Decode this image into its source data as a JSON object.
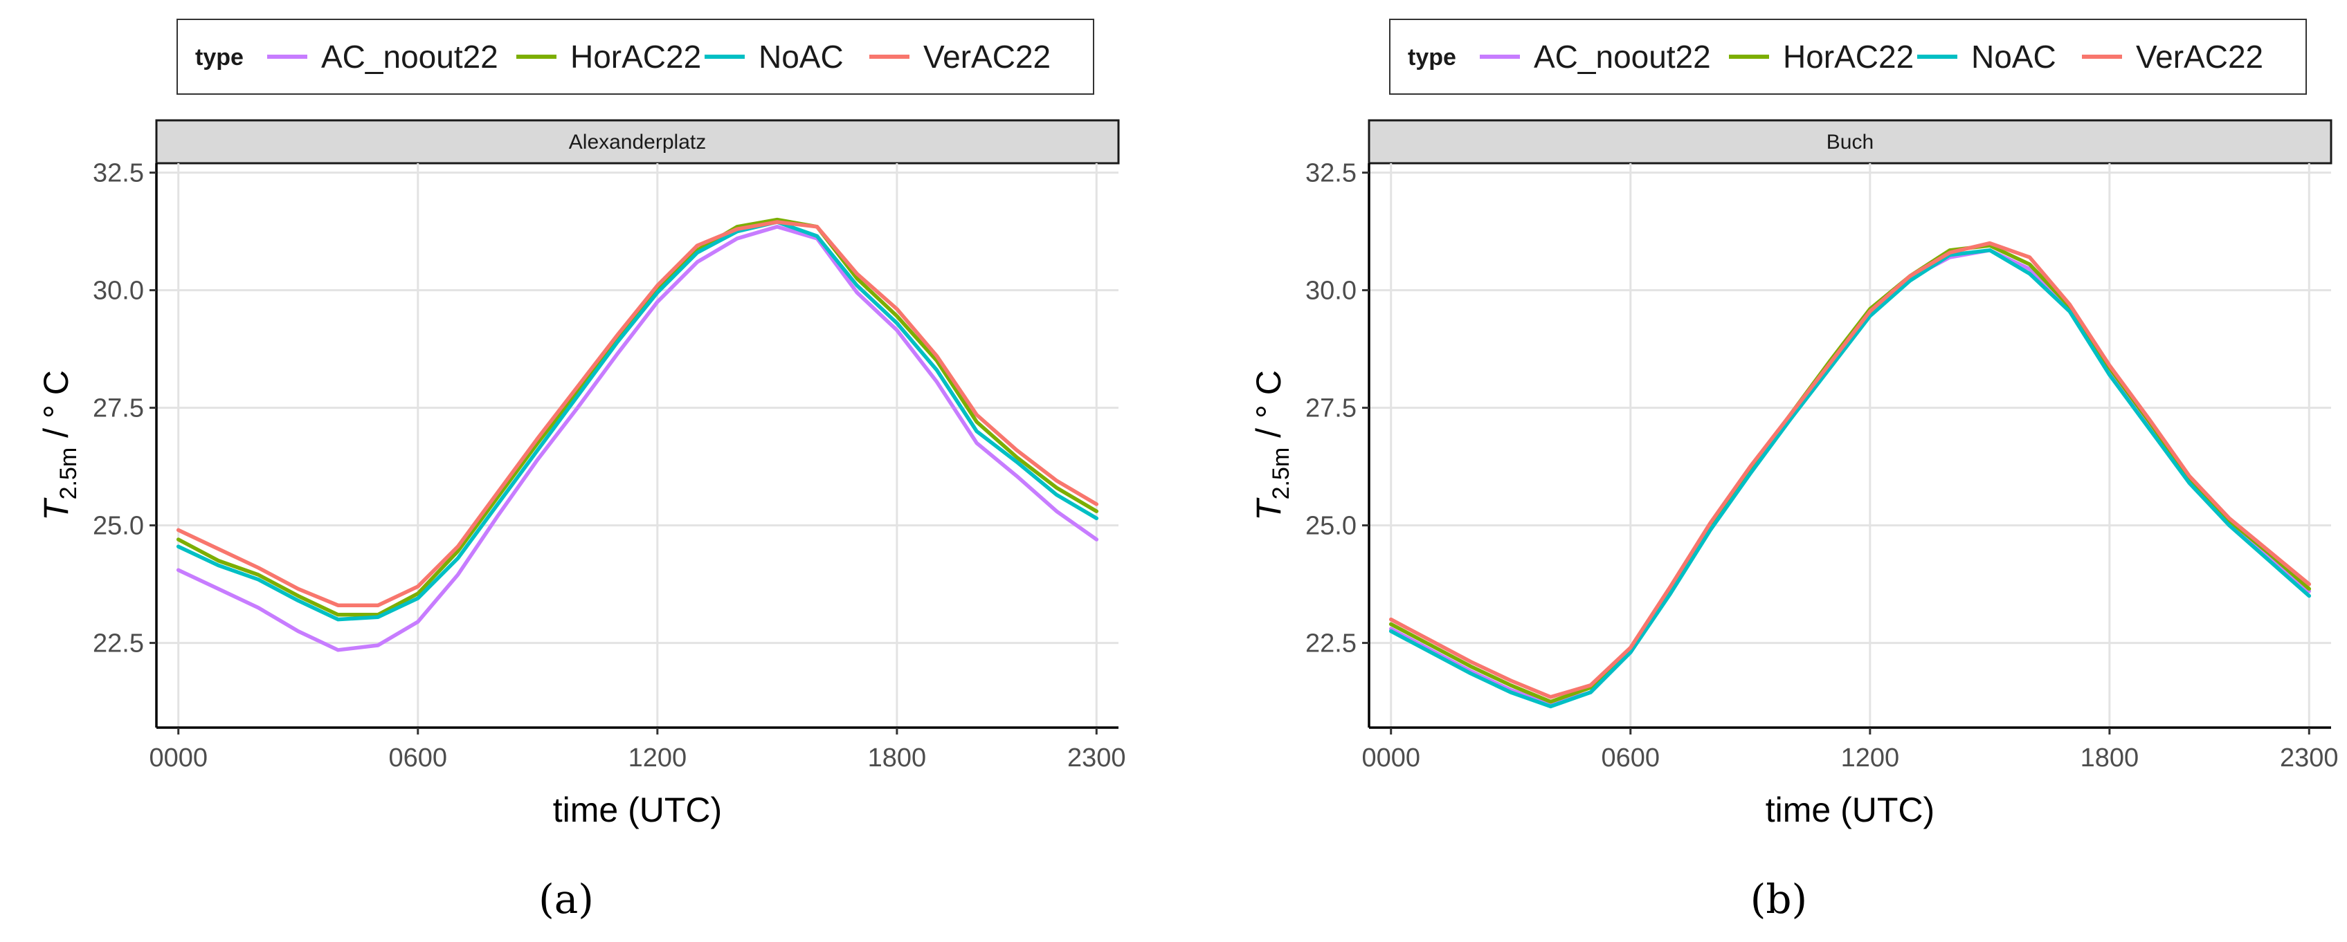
{
  "legend": {
    "title": "type",
    "entries": [
      {
        "name": "AC_noout22",
        "color": "#C77CFF"
      },
      {
        "name": "HorAC22",
        "color": "#7CAE00"
      },
      {
        "name": "NoAC",
        "color": "#00BFC4"
      },
      {
        "name": "VerAC22",
        "color": "#F8766D"
      }
    ]
  },
  "chart_data": [
    {
      "type": "line",
      "panel_label": "(a)",
      "title": "Alexanderplatz",
      "xlabel": "time (UTC)",
      "ylabel": "T2.5m / ° C",
      "ylabel_main": "T",
      "ylabel_sub": "2.5m",
      "ylabel_unit": " / ° C",
      "x": [
        0,
        1,
        2,
        3,
        4,
        5,
        6,
        7,
        8,
        9,
        10,
        11,
        12,
        13,
        14,
        15,
        16,
        17,
        18,
        19,
        20,
        21,
        22,
        23
      ],
      "xlim": [
        -0.55,
        23.55
      ],
      "ylim": [
        20.7,
        32.7
      ],
      "xticks": [
        {
          "value": 0,
          "label": "0000"
        },
        {
          "value": 6,
          "label": "0600"
        },
        {
          "value": 12,
          "label": "1200"
        },
        {
          "value": 18,
          "label": "1800"
        },
        {
          "value": 23,
          "label": "2300"
        }
      ],
      "yticks": [
        {
          "value": 22.5,
          "label": "22.5"
        },
        {
          "value": 25.0,
          "label": "25.0"
        },
        {
          "value": 27.5,
          "label": "27.5"
        },
        {
          "value": 30.0,
          "label": "30.0"
        },
        {
          "value": 32.5,
          "label": "32.5"
        }
      ],
      "series": [
        {
          "name": "AC_noout22",
          "color": "#C77CFF",
          "values": [
            24.05,
            23.65,
            23.25,
            22.75,
            22.35,
            22.45,
            22.95,
            23.95,
            25.2,
            26.4,
            27.5,
            28.65,
            29.75,
            30.6,
            31.1,
            31.35,
            31.1,
            29.95,
            29.15,
            28.05,
            26.75,
            26.05,
            25.3,
            24.7
          ]
        },
        {
          "name": "HorAC22",
          "color": "#7CAE00",
          "values": [
            24.7,
            24.25,
            23.95,
            23.5,
            23.1,
            23.1,
            23.55,
            24.45,
            25.6,
            26.75,
            27.85,
            28.95,
            30.05,
            30.85,
            31.35,
            31.5,
            31.35,
            30.25,
            29.45,
            28.5,
            27.2,
            26.45,
            25.8,
            25.3
          ]
        },
        {
          "name": "NoAC",
          "color": "#00BFC4",
          "values": [
            24.55,
            24.15,
            23.85,
            23.4,
            23.0,
            23.05,
            23.45,
            24.3,
            25.45,
            26.6,
            27.75,
            28.9,
            29.95,
            30.8,
            31.25,
            31.45,
            31.15,
            30.1,
            29.3,
            28.3,
            27.0,
            26.35,
            25.65,
            25.15
          ]
        },
        {
          "name": "VerAC22",
          "color": "#F8766D",
          "values": [
            24.9,
            24.5,
            24.1,
            23.65,
            23.3,
            23.3,
            23.7,
            24.55,
            25.7,
            26.85,
            27.95,
            29.05,
            30.1,
            30.95,
            31.3,
            31.45,
            31.35,
            30.35,
            29.6,
            28.6,
            27.35,
            26.6,
            25.95,
            25.45
          ]
        }
      ]
    },
    {
      "type": "line",
      "panel_label": "(b)",
      "title": "Buch",
      "xlabel": "time (UTC)",
      "ylabel": "T2.5m / ° C",
      "ylabel_main": "T",
      "ylabel_sub": "2.5m",
      "ylabel_unit": " / ° C",
      "x": [
        0,
        1,
        2,
        3,
        4,
        5,
        6,
        7,
        8,
        9,
        10,
        11,
        12,
        13,
        14,
        15,
        16,
        17,
        18,
        19,
        20,
        21,
        22,
        23
      ],
      "xlim": [
        -0.55,
        23.55
      ],
      "ylim": [
        20.7,
        32.7
      ],
      "xticks": [
        {
          "value": 0,
          "label": "0000"
        },
        {
          "value": 6,
          "label": "0600"
        },
        {
          "value": 12,
          "label": "1200"
        },
        {
          "value": 18,
          "label": "1800"
        },
        {
          "value": 23,
          "label": "2300"
        }
      ],
      "yticks": [
        {
          "value": 22.5,
          "label": "22.5"
        },
        {
          "value": 25.0,
          "label": "25.0"
        },
        {
          "value": 27.5,
          "label": "27.5"
        },
        {
          "value": 30.0,
          "label": "30.0"
        },
        {
          "value": 32.5,
          "label": "32.5"
        }
      ],
      "series": [
        {
          "name": "AC_noout22",
          "color": "#C77CFF",
          "values": [
            22.8,
            22.35,
            21.9,
            21.5,
            21.2,
            21.45,
            22.3,
            23.6,
            24.95,
            26.15,
            27.25,
            28.4,
            29.5,
            30.25,
            30.7,
            30.85,
            30.45,
            29.6,
            28.25,
            27.1,
            25.95,
            25.05,
            24.3,
            23.6
          ]
        },
        {
          "name": "HorAC22",
          "color": "#7CAE00",
          "values": [
            22.9,
            22.45,
            22.0,
            21.6,
            21.25,
            21.55,
            22.35,
            23.65,
            25.0,
            26.2,
            27.35,
            28.5,
            29.6,
            30.3,
            30.85,
            30.95,
            30.55,
            29.65,
            28.35,
            27.2,
            26.0,
            25.1,
            24.4,
            23.65
          ]
        },
        {
          "name": "NoAC",
          "color": "#00BFC4",
          "values": [
            22.75,
            22.3,
            21.85,
            21.45,
            21.15,
            21.45,
            22.3,
            23.55,
            24.9,
            26.1,
            27.25,
            28.35,
            29.45,
            30.2,
            30.75,
            30.85,
            30.35,
            29.55,
            28.2,
            27.05,
            25.9,
            25.0,
            24.25,
            23.5
          ]
        },
        {
          "name": "VerAC22",
          "color": "#F8766D",
          "values": [
            23.0,
            22.55,
            22.1,
            21.7,
            21.35,
            21.6,
            22.4,
            23.7,
            25.05,
            26.25,
            27.35,
            28.45,
            29.55,
            30.3,
            30.8,
            31.0,
            30.7,
            29.7,
            28.4,
            27.25,
            26.05,
            25.15,
            24.45,
            23.75
          ]
        }
      ]
    }
  ]
}
